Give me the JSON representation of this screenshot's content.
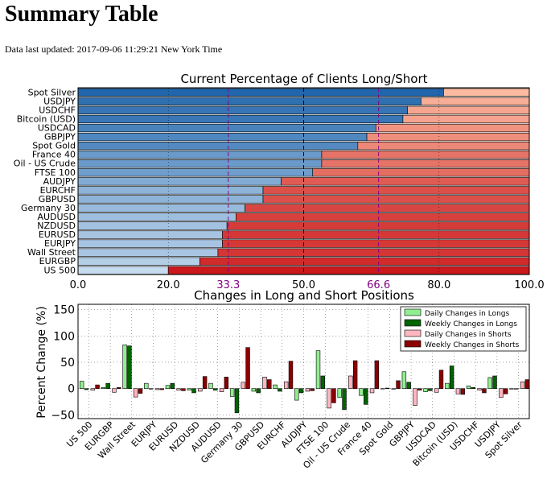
{
  "page": {
    "title": "Summary Table",
    "updated": "Data last updated: 2017-09-06 11:29:21 New York Time"
  },
  "colors": {
    "long_light": "#c6dbef",
    "long_dark": "#2166ac",
    "short_light": "#fcbba1",
    "short_dark": "#cb181d",
    "thirds_line": "#800080",
    "daily_longs": "#90ee90",
    "weekly_longs": "#006400",
    "daily_shorts": "#ffb6c1",
    "weekly_shorts": "#8b0000"
  },
  "chart_data": [
    {
      "type": "bar",
      "orientation": "horizontal",
      "stacked": true,
      "title": "Current Percentage of Clients Long/Short",
      "categories": [
        "Spot Silver",
        "USDJPY",
        "USDCHF",
        "Bitcoin (USD)",
        "USDCAD",
        "GBPJPY",
        "Spot Gold",
        "France 40",
        "Oil - US Crude",
        "FTSE 100",
        "AUDJPY",
        "EURCHF",
        "GBPUSD",
        "Germany 30",
        "AUDUSD",
        "NZDUSD",
        "EURUSD",
        "EURJPY",
        "Wall Street",
        "EURGBP",
        "US 500"
      ],
      "series": [
        {
          "values": [
            81,
            76,
            73,
            72,
            66,
            64,
            62,
            54,
            54,
            52,
            45,
            41,
            41,
            37,
            35,
            33,
            32,
            32,
            31,
            27,
            20
          ]
        },
        {
          "values": [
            19,
            24,
            27,
            28,
            34,
            36,
            38,
            46,
            46,
            48,
            55,
            59,
            59,
            63,
            65,
            67,
            68,
            68,
            69,
            73,
            80
          ]
        }
      ],
      "xlim": [
        0,
        100
      ],
      "xticks": [
        "0.0",
        "20.0",
        "33.3",
        "50.0",
        "66.6",
        "80.0",
        "100.0"
      ],
      "reference_lines": [
        33.3,
        50,
        66.6
      ],
      "grid": true
    },
    {
      "type": "bar",
      "title": "Changes in Long and Short Positions",
      "ylabel": "Percent Change (%)",
      "ylim": [
        -57,
        160
      ],
      "yticks": [
        "150",
        "100",
        "50",
        "0",
        "−50"
      ],
      "categories": [
        "US 500",
        "EURGBP",
        "Wall Street",
        "EURJPY",
        "EURUSD",
        "NZDUSD",
        "AUDUSD",
        "Germany 30",
        "GBPUSD",
        "EURCHF",
        "AUDJPY",
        "FTSE 100",
        "Oil - US Crude",
        "France 40",
        "Spot Gold",
        "GBPJPY",
        "USDCAD",
        "Bitcoin (USD)",
        "USDCHF",
        "USDJPY",
        "Spot Silver"
      ],
      "series": [
        {
          "name": "Daily Changes in Longs",
          "values": [
            14,
            2,
            83,
            10,
            6,
            -3,
            10,
            -15,
            -5,
            7,
            -22,
            72,
            -17,
            -13,
            0,
            32,
            -6,
            10,
            5,
            21,
            -1
          ]
        },
        {
          "name": "Weekly Changes in Longs",
          "values": [
            -2,
            10,
            81,
            -1,
            10,
            -8,
            -3,
            -46,
            -8,
            -5,
            -8,
            24,
            -40,
            -30,
            1,
            12,
            -4,
            43,
            2,
            24,
            -1
          ]
        },
        {
          "name": "Daily Changes in Shorts",
          "values": [
            -3,
            -7,
            -16,
            -2,
            -3,
            -5,
            -6,
            12,
            22,
            13,
            -5,
            -37,
            24,
            -8,
            -1,
            -32,
            -7,
            -10,
            -3,
            -17,
            13
          ]
        },
        {
          "name": "Weekly Changes in Shorts",
          "values": [
            7,
            2,
            -9,
            -2,
            -4,
            23,
            22,
            78,
            17,
            52,
            -4,
            -27,
            53,
            53,
            15,
            -3,
            35,
            -11,
            -8,
            -10,
            17
          ]
        }
      ],
      "legend_position": "top-right",
      "grid": true
    }
  ]
}
